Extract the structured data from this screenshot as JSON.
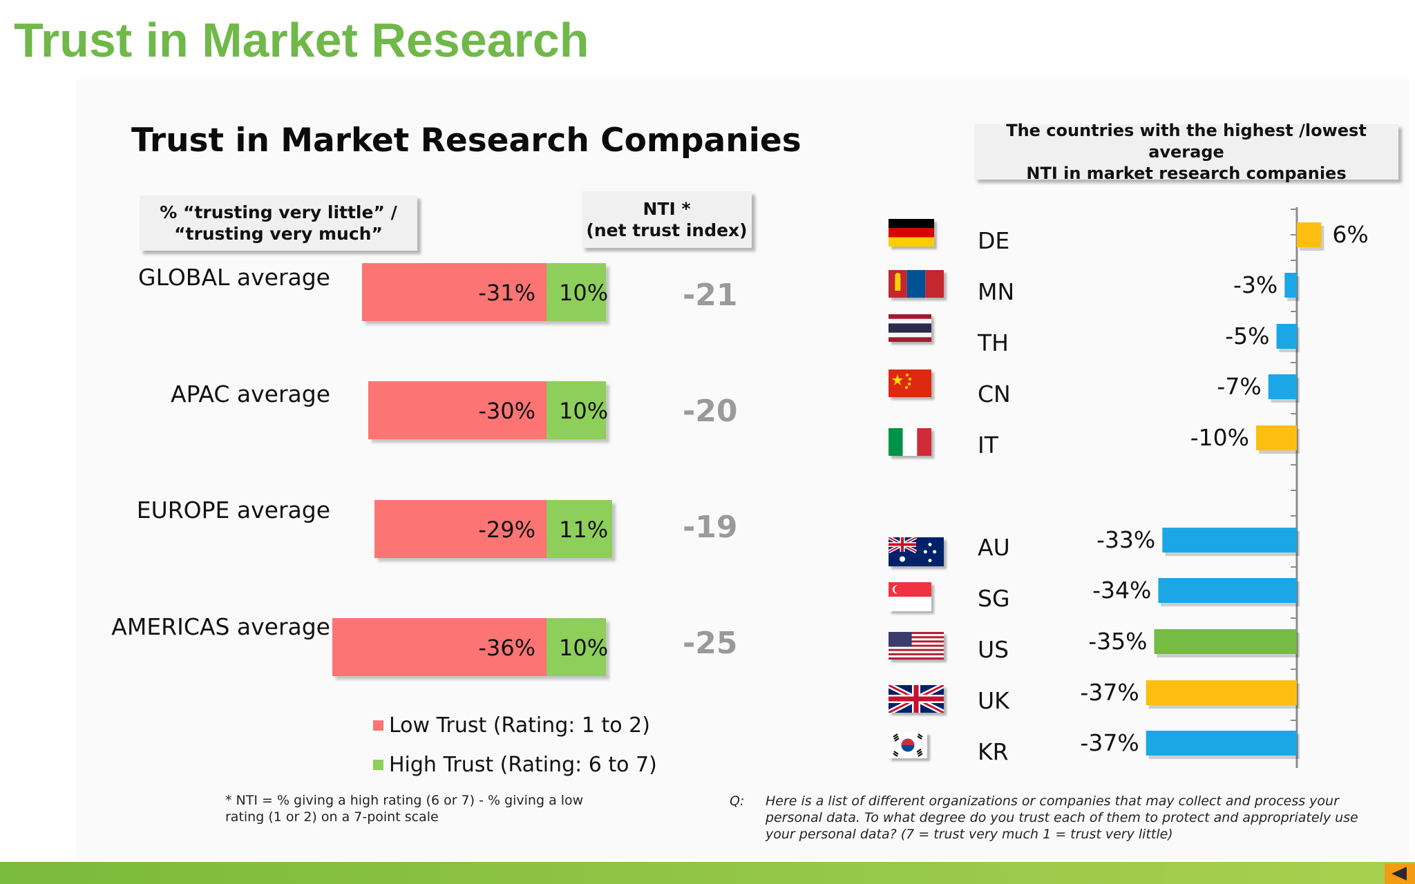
{
  "title": "Trust in Market Research",
  "subtitle": "Trust in Market Research Companies",
  "pct_box": {
    "line1": "% “trusting very  little” /",
    "line2": "“trusting very much”"
  },
  "nti_box": {
    "line1": "NTI *",
    "line2": "(net trust index)"
  },
  "country_box": {
    "line1": "The countries with the highest /lowest average",
    "line2": "NTI in market research companies"
  },
  "legend": {
    "low": "Low Trust (Rating: 1 to 2)",
    "high": "High Trust (Rating: 6 to 7)",
    "low_color": "#fc7474",
    "high_color": "#8ecf5b"
  },
  "footnote": "* NTI = % giving a high rating (6 or 7) - % giving a low rating (1 or 2) on a 7-point scale",
  "question": {
    "label": "Q:",
    "text": "Here is a list of different organizations or companies that may collect and process your personal data.  To what degree do you trust each of them to protect and appropriately use your personal data? (7 = trust very much 1 = trust very little)"
  },
  "chart_data": [
    {
      "type": "bar",
      "orientation": "horizontal-stacked",
      "categories": [
        "GLOBAL average",
        "APAC average",
        "EUROPE average",
        "AMERICAS average"
      ],
      "series": [
        {
          "name": "Low Trust (Rating: 1 to 2)",
          "values": [
            -31,
            -30,
            -29,
            -36
          ],
          "labels": [
            "-31%",
            "-30%",
            "-29%",
            "-36%"
          ],
          "color": "#fc7474"
        },
        {
          "name": "High Trust (Rating: 6 to 7)",
          "values": [
            10,
            10,
            11,
            10
          ],
          "labels": [
            "10%",
            "10%",
            "11%",
            "10%"
          ],
          "color": "#8ecf5b"
        }
      ],
      "nti": [
        "-21",
        "-20",
        "-19",
        "-25"
      ]
    },
    {
      "type": "bar",
      "orientation": "horizontal",
      "categories": [
        "DE",
        "MN",
        "TH",
        "CN",
        "IT",
        "AU",
        "SG",
        "US",
        "UK",
        "KR"
      ],
      "values": [
        6,
        -3,
        -5,
        -7,
        -10,
        -33,
        -34,
        -35,
        -37,
        -37
      ],
      "labels": [
        "6%",
        "-3%",
        "-5%",
        "-7%",
        "-10%",
        "-33%",
        "-34%",
        "-35%",
        "-37%",
        "-37%"
      ],
      "colors": [
        "#fcbf10",
        "#1ba7e6",
        "#1ba7e6",
        "#1ba7e6",
        "#fcbf10",
        "#1ba7e6",
        "#1ba7e6",
        "#75bc45",
        "#fcbf10",
        "#1ba7e6"
      ],
      "flags": [
        "germany-flag-icon",
        "mongolia-flag-icon",
        "thailand-flag-icon",
        "china-flag-icon",
        "italy-flag-icon",
        "australia-flag-icon",
        "singapore-flag-icon",
        "usa-flag-icon",
        "uk-flag-icon",
        "korea-flag-icon"
      ]
    }
  ]
}
